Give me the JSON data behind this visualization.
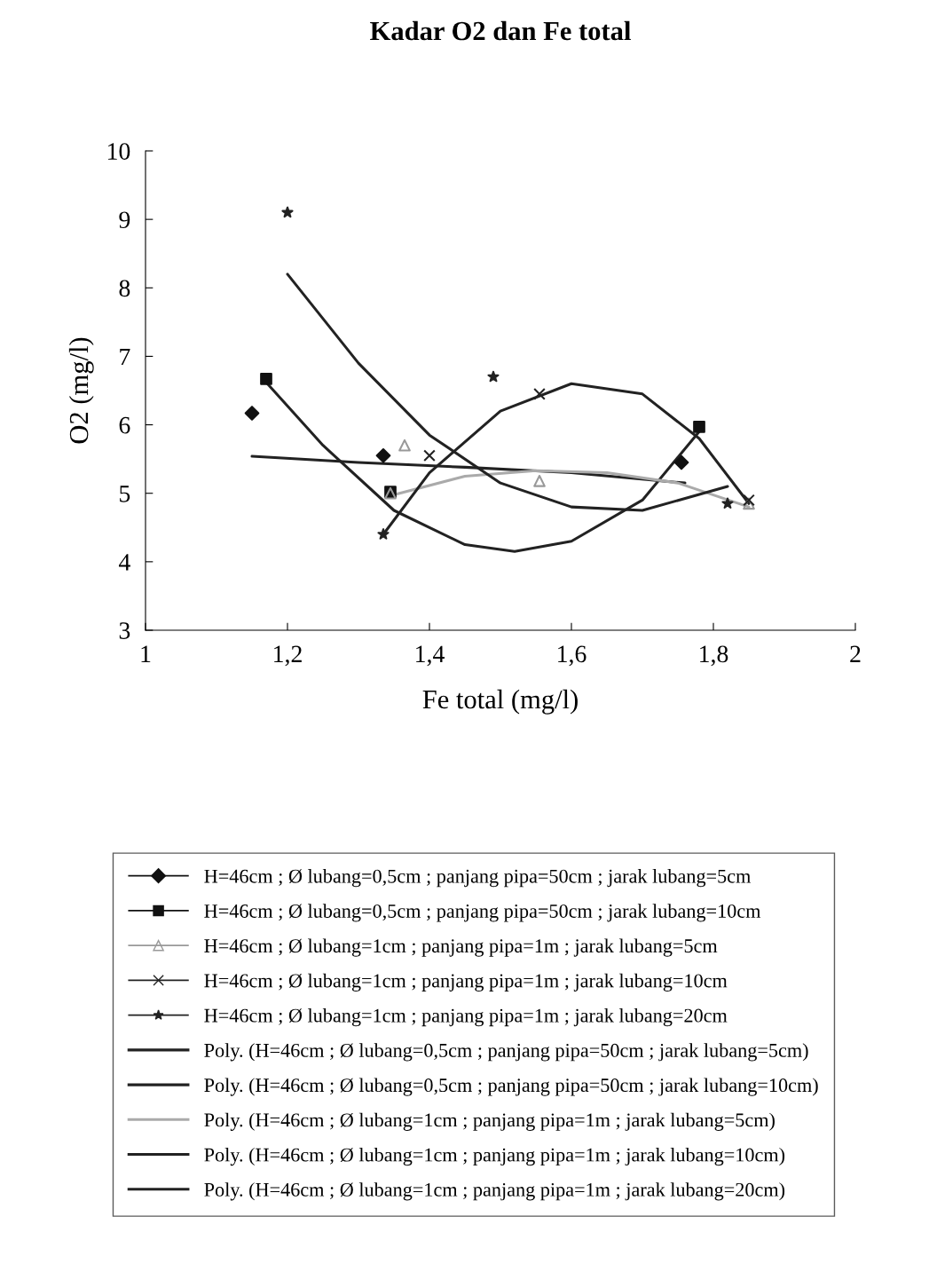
{
  "chart_data": {
    "type": "scatter",
    "title": "Kadar O2 dan Fe total",
    "xlabel": "Fe total (mg/l)",
    "ylabel": "O2 (mg/l)",
    "xlim": [
      1,
      2
    ],
    "ylim": [
      3,
      10
    ],
    "xticks": [
      1,
      {
        "value": 1.2,
        "label": "1,2"
      },
      {
        "value": 1.4,
        "label": "1,4"
      },
      {
        "value": 1.6,
        "label": "1,6"
      },
      {
        "value": 1.8,
        "label": "1,8"
      },
      2
    ],
    "yticks": [
      3,
      4,
      5,
      6,
      7,
      8,
      9,
      10
    ],
    "grid": false,
    "legend": "bottom",
    "series": [
      {
        "name": "H=46cm ; Ø lubang=0,5cm ; panjang pipa=50cm ; jarak lubang=5cm",
        "marker": "diamond",
        "color": "#111111",
        "x": [
          1.15,
          1.335,
          1.755
        ],
        "values": [
          6.17,
          5.55,
          5.45
        ]
      },
      {
        "name": "H=46cm ; Ø lubang=0,5cm ; panjang pipa=50cm ; jarak lubang=10cm",
        "marker": "square",
        "color": "#111111",
        "x": [
          1.17,
          1.345,
          1.78
        ],
        "values": [
          6.67,
          5.02,
          5.97
        ]
      },
      {
        "name": "H=46cm ; Ø lubang=1cm ; panjang pipa=1m ; jarak lubang=5cm",
        "marker": "triangle",
        "color": "#999999",
        "x": [
          1.345,
          1.365,
          1.555,
          1.85
        ],
        "values": [
          5.0,
          5.7,
          5.18,
          4.85
        ]
      },
      {
        "name": "H=46cm ; Ø lubang=1cm ; panjang pipa=1m ; jarak lubang=10cm",
        "marker": "cross",
        "color": "#222222",
        "x": [
          1.4,
          1.555,
          1.85
        ],
        "values": [
          5.55,
          6.45,
          4.9
        ]
      },
      {
        "name": "H=46cm ; Ø lubang=1cm ; panjang pipa=1m ; jarak lubang=20cm",
        "marker": "star",
        "color": "#222222",
        "x": [
          1.2,
          1.335,
          1.49,
          1.82
        ],
        "values": [
          9.1,
          4.4,
          6.7,
          4.85
        ]
      },
      {
        "name": "Poly. (H=46cm ; Ø lubang=0,5cm ; panjang pipa=50cm ; jarak lubang=5cm)",
        "type": "line",
        "color": "#222222",
        "x": [
          1.15,
          1.3,
          1.45,
          1.6,
          1.76
        ],
        "values": [
          5.54,
          5.45,
          5.38,
          5.3,
          5.15
        ]
      },
      {
        "name": "Poly. (H=46cm ; Ø lubang=0,5cm ; panjang pipa=50cm ; jarak lubang=10cm)",
        "type": "line",
        "color": "#222222",
        "x": [
          1.17,
          1.25,
          1.35,
          1.45,
          1.52,
          1.6,
          1.7,
          1.78
        ],
        "values": [
          6.62,
          5.7,
          4.75,
          4.25,
          4.15,
          4.3,
          4.9,
          5.9
        ]
      },
      {
        "name": "Poly. (H=46cm ; Ø lubang=1cm ; panjang pipa=1m ; jarak lubang=5cm)",
        "type": "line",
        "color": "#aaaaaa",
        "x": [
          1.34,
          1.45,
          1.55,
          1.65,
          1.75,
          1.85
        ],
        "values": [
          4.95,
          5.25,
          5.33,
          5.3,
          5.15,
          4.8
        ]
      },
      {
        "name": "Poly. (H=46cm ; Ø lubang=1cm ; panjang pipa=1m ; jarak lubang=10cm)",
        "type": "line",
        "color": "#222222",
        "x": [
          1.335,
          1.4,
          1.5,
          1.6,
          1.7,
          1.78,
          1.85
        ],
        "values": [
          4.4,
          5.3,
          6.2,
          6.6,
          6.45,
          5.8,
          4.85
        ]
      },
      {
        "name": "Poly. (H=46cm ; Ø lubang=1cm ; panjang pipa=1m ; jarak lubang=20cm)",
        "type": "line",
        "color": "#222222",
        "x": [
          1.2,
          1.3,
          1.4,
          1.5,
          1.6,
          1.7,
          1.82
        ],
        "values": [
          8.2,
          6.9,
          5.85,
          5.15,
          4.8,
          4.75,
          5.1
        ]
      }
    ]
  }
}
